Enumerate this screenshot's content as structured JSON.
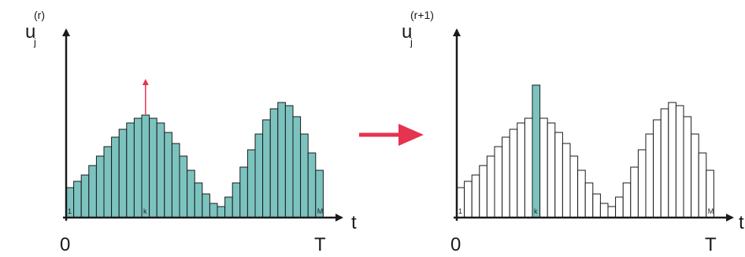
{
  "left_panel": {
    "y_label_base": "u",
    "y_label_sub": "j",
    "y_label_sup": "(r)",
    "x_label": "t",
    "origin_label": "0",
    "end_label": "T",
    "bar_index_first": "1",
    "bar_index_k": "k",
    "bar_index_last": "M"
  },
  "right_panel": {
    "y_label_base": "u",
    "y_label_sub": "j",
    "y_label_sup": "(r+1)",
    "x_label": "t",
    "origin_label": "0",
    "end_label": "T",
    "bar_index_first": "1",
    "bar_index_k": "k",
    "bar_index_last": "M"
  },
  "bar_heights_relative": [
    0.19,
    0.23,
    0.27,
    0.33,
    0.39,
    0.45,
    0.51,
    0.56,
    0.6,
    0.63,
    0.65,
    0.63,
    0.6,
    0.54,
    0.47,
    0.39,
    0.3,
    0.22,
    0.15,
    0.09,
    0.07,
    0.13,
    0.22,
    0.32,
    0.43,
    0.53,
    0.62,
    0.69,
    0.73,
    0.71,
    0.64,
    0.53,
    0.41,
    0.3
  ],
  "highlighted_bar_k_index": 10,
  "highlighted_bar_new_height_relative": 0.84,
  "colors": {
    "bar_fill": "#7cc3bf",
    "bar_stroke": "#1a1a1a",
    "axis": "#1a1a1a",
    "arrow_red": "#e6334f"
  }
}
